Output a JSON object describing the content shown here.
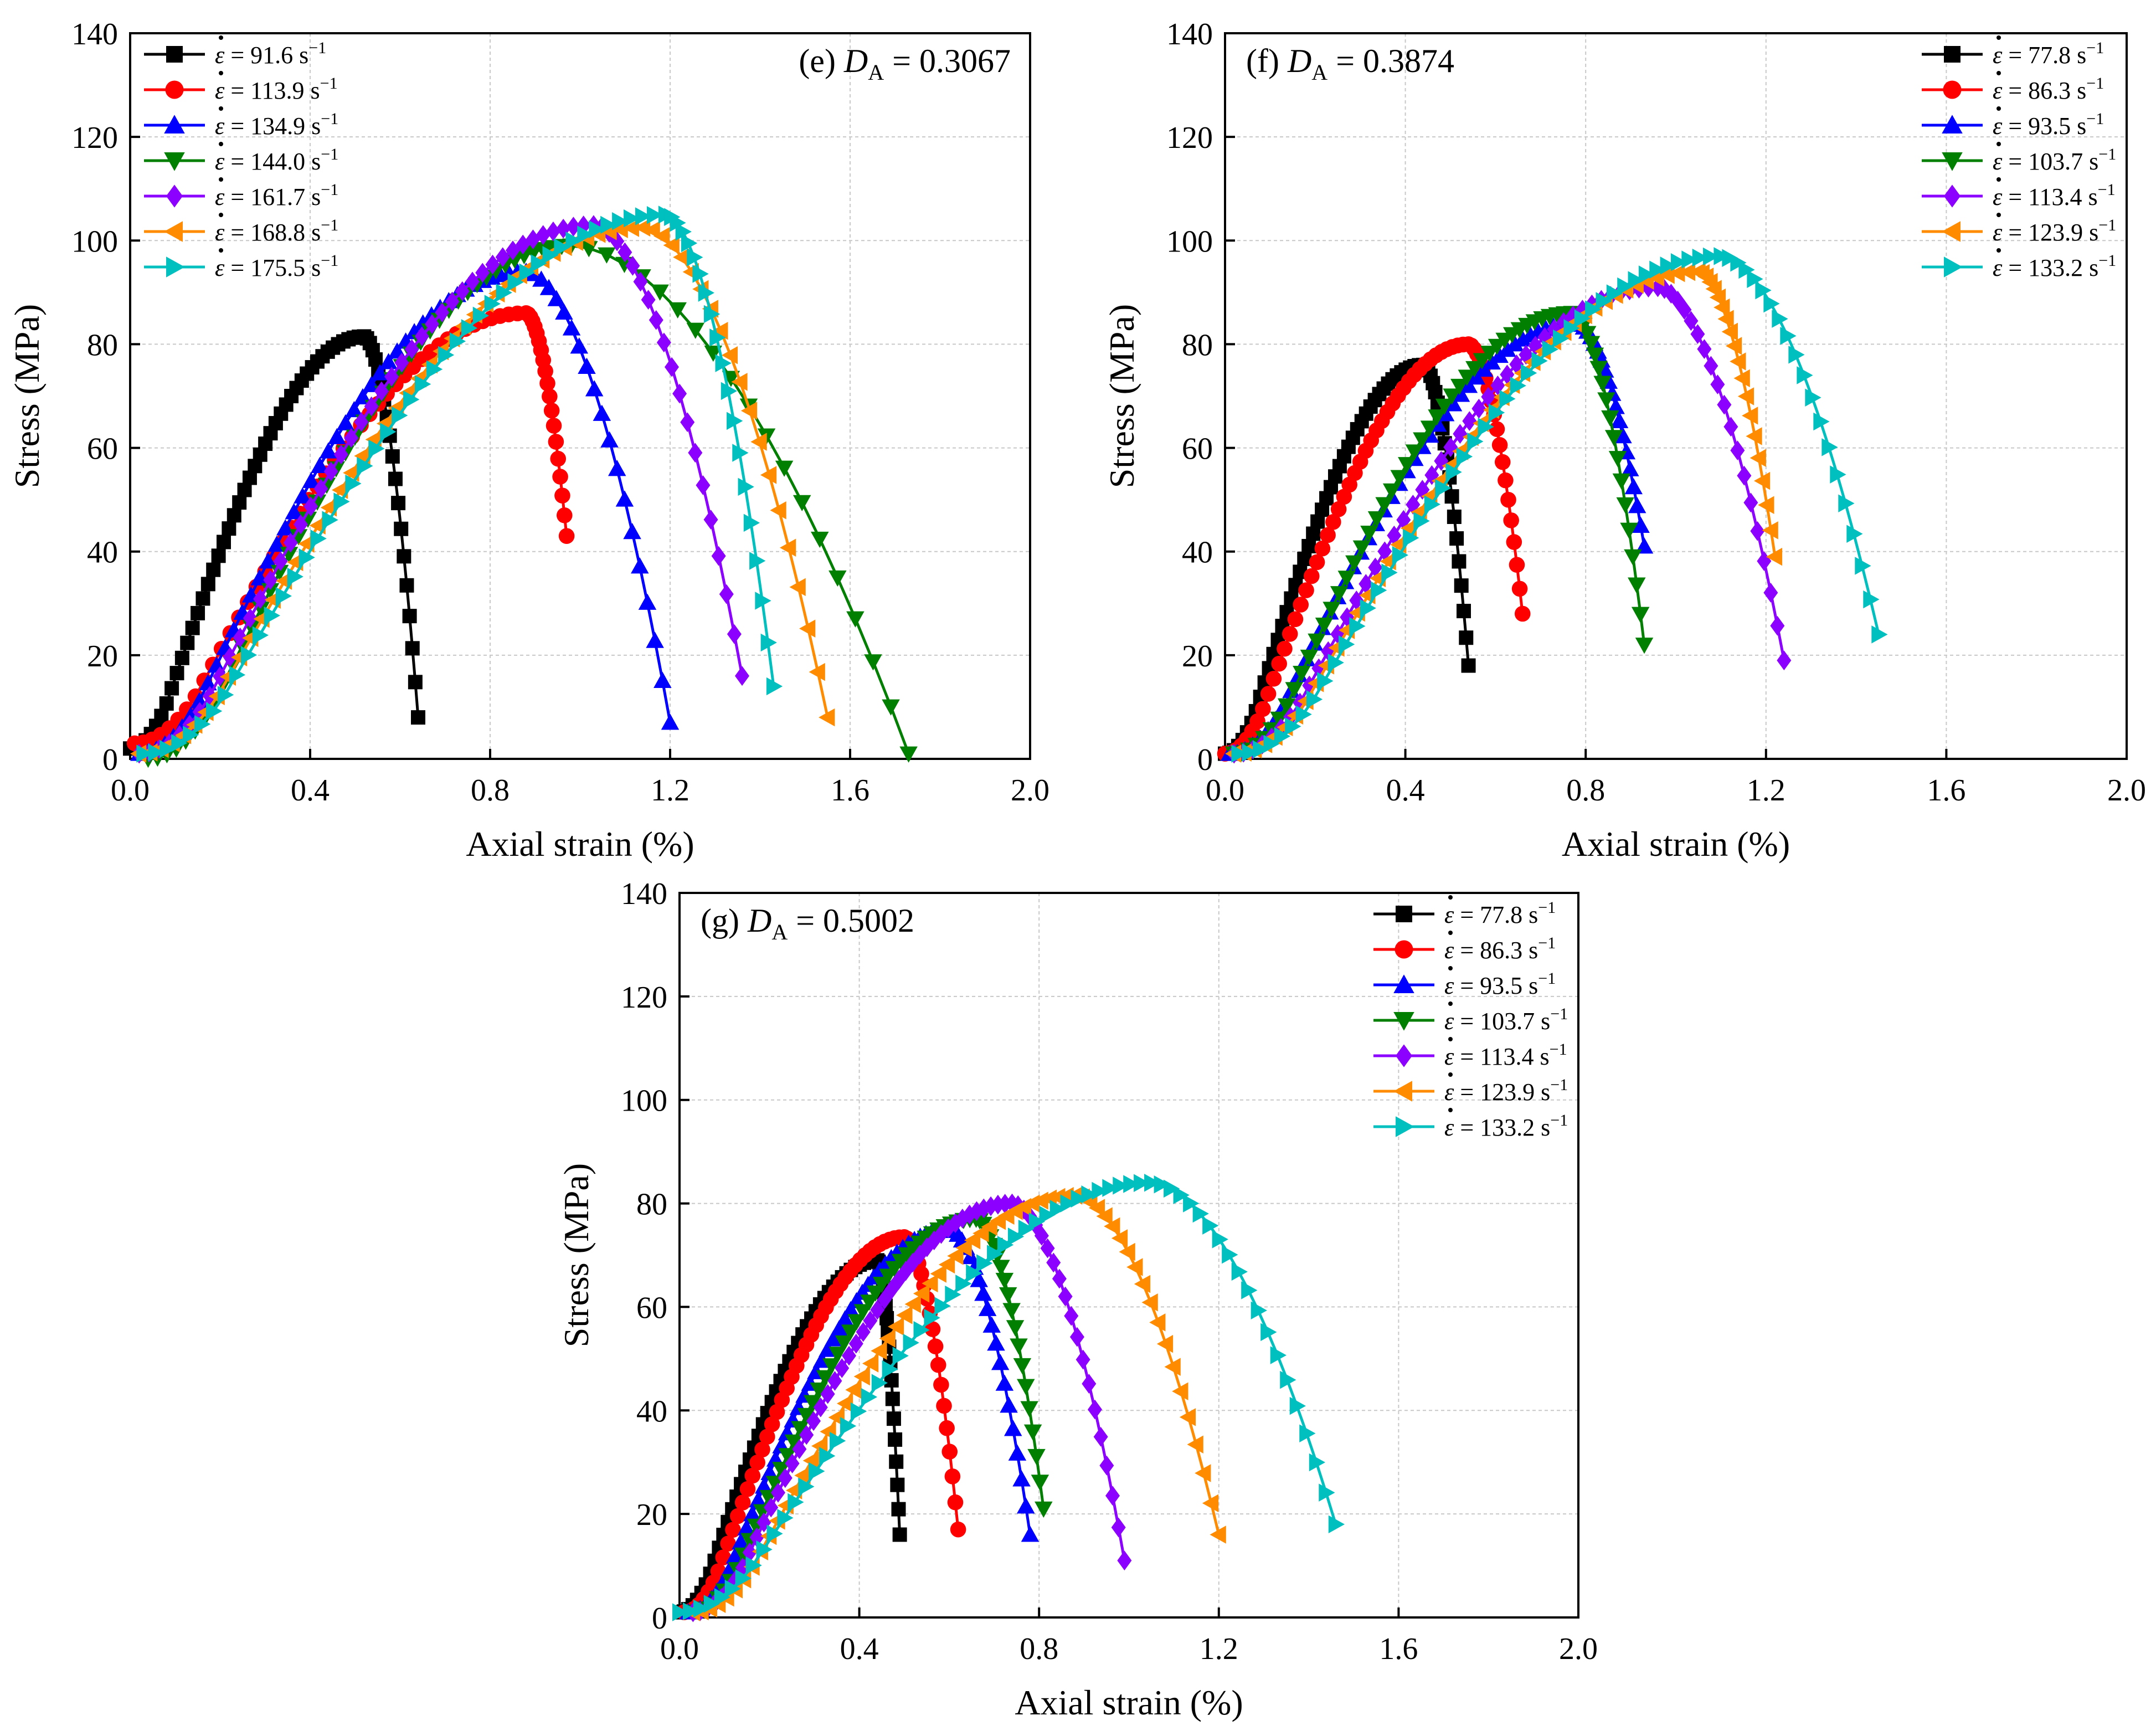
{
  "chart_data": [
    {
      "type": "line",
      "panel": "(e)",
      "title_prefix": "(e) ",
      "title_symbol": "D",
      "title_sub": "A",
      "title_value": " = 0.3067",
      "xlabel": "Axial strain (%)",
      "ylabel": "Stress (MPa)",
      "xlim": [
        0,
        2.0
      ],
      "ylim": [
        0,
        140
      ],
      "xticks": [
        "0.0",
        "0.4",
        "0.8",
        "1.2",
        "1.6",
        "2.0"
      ],
      "yticks": [
        "0",
        "20",
        "40",
        "60",
        "80",
        "100",
        "120",
        "140"
      ],
      "grid": true,
      "legend_position": "top-left",
      "series": [
        {
          "name": "91.6",
          "color": "#000000",
          "marker": "square",
          "peak_strain": 0.52,
          "peak_stress": 81.5,
          "end_strain": 0.64,
          "end_stress": 8,
          "start_strain": 0.0,
          "start_stress": 2
        },
        {
          "name": "113.9",
          "color": "#ff0000",
          "marker": "circle",
          "peak_strain": 0.88,
          "peak_stress": 86,
          "end_strain": 0.97,
          "end_stress": 43,
          "start_strain": 0.01,
          "start_stress": 3
        },
        {
          "name": "134.9",
          "color": "#0000ff",
          "marker": "triangle-up",
          "peak_strain": 0.88,
          "peak_stress": 94,
          "end_strain": 1.2,
          "end_stress": 7,
          "start_strain": 0.02,
          "start_stress": 1
        },
        {
          "name": "144.0",
          "color": "#007f00",
          "marker": "triangle-down",
          "peak_strain": 0.98,
          "peak_stress": 99,
          "end_strain": 1.73,
          "end_stress": 1,
          "start_strain": 0.04,
          "start_stress": 0
        },
        {
          "name": "161.7",
          "color": "#8b00ff",
          "marker": "diamond",
          "peak_strain": 1.03,
          "peak_stress": 103,
          "end_strain": 1.36,
          "end_stress": 16,
          "start_strain": 0.02,
          "start_stress": 1
        },
        {
          "name": "168.8",
          "color": "#ff8c00",
          "marker": "triangle-left",
          "peak_strain": 1.14,
          "peak_stress": 102.5,
          "end_strain": 1.55,
          "end_stress": 8,
          "start_strain": 0.02,
          "start_stress": 1
        },
        {
          "name": "175.5",
          "color": "#00bfbf",
          "marker": "triangle-right",
          "peak_strain": 1.19,
          "peak_stress": 105,
          "end_strain": 1.43,
          "end_stress": 14,
          "start_strain": 0.03,
          "start_stress": 1
        }
      ]
    },
    {
      "type": "line",
      "panel": "(f)",
      "title_prefix": "(f) ",
      "title_symbol": "D",
      "title_sub": "A",
      "title_value": " = 0.3874",
      "xlabel": "Axial strain (%)",
      "ylabel": "Stress (MPa)",
      "xlim": [
        0,
        2.0
      ],
      "ylim": [
        0,
        140
      ],
      "xticks": [
        "0.0",
        "0.4",
        "0.8",
        "1.2",
        "1.6",
        "2.0"
      ],
      "yticks": [
        "0",
        "20",
        "40",
        "60",
        "80",
        "100",
        "120",
        "140"
      ],
      "grid": true,
      "legend_position": "top-right",
      "series": [
        {
          "name": "77.8",
          "color": "#000000",
          "marker": "square",
          "peak_strain": 0.44,
          "peak_stress": 76,
          "end_strain": 0.54,
          "end_stress": 18,
          "start_strain": 0.0,
          "start_stress": 1
        },
        {
          "name": "86.3",
          "color": "#ff0000",
          "marker": "circle",
          "peak_strain": 0.54,
          "peak_stress": 80,
          "end_strain": 0.66,
          "end_stress": 28,
          "start_strain": 0.0,
          "start_stress": 1
        },
        {
          "name": "93.5",
          "color": "#0000ff",
          "marker": "triangle-up",
          "peak_strain": 0.78,
          "peak_stress": 84,
          "end_strain": 0.93,
          "end_stress": 41,
          "start_strain": 0.01,
          "start_stress": 1
        },
        {
          "name": "103.7",
          "color": "#007f00",
          "marker": "triangle-down",
          "peak_strain": 0.77,
          "peak_stress": 86,
          "end_strain": 0.93,
          "end_stress": 22,
          "start_strain": 0.02,
          "start_stress": 1
        },
        {
          "name": "113.4",
          "color": "#8b00ff",
          "marker": "diamond",
          "peak_strain": 0.96,
          "peak_stress": 91,
          "end_strain": 1.24,
          "end_stress": 19,
          "start_strain": 0.02,
          "start_stress": 1
        },
        {
          "name": "123.9",
          "color": "#ff8c00",
          "marker": "triangle-left",
          "peak_strain": 1.05,
          "peak_stress": 94,
          "end_strain": 1.22,
          "end_stress": 39,
          "start_strain": 0.02,
          "start_stress": 1
        },
        {
          "name": "133.2",
          "color": "#00bfbf",
          "marker": "triangle-right",
          "peak_strain": 1.1,
          "peak_stress": 97,
          "end_strain": 1.45,
          "end_stress": 24,
          "start_strain": 0.03,
          "start_stress": 1
        }
      ]
    },
    {
      "type": "line",
      "panel": "(g)",
      "title_prefix": "(g) ",
      "title_symbol": "D",
      "title_sub": "A",
      "title_value": " = 0.5002",
      "xlabel": "Axial strain (%)",
      "ylabel": "Stress (MPa)",
      "xlim": [
        0,
        2.0
      ],
      "ylim": [
        0,
        140
      ],
      "xticks": [
        "0.0",
        "0.4",
        "0.8",
        "1.2",
        "1.6",
        "2.0"
      ],
      "yticks": [
        "0",
        "20",
        "40",
        "60",
        "80",
        "100",
        "120",
        "140"
      ],
      "grid": true,
      "legend_position": "top-right",
      "series": [
        {
          "name": "77.8",
          "color": "#000000",
          "marker": "square",
          "peak_strain": 0.44,
          "peak_stress": 69,
          "end_strain": 0.49,
          "end_stress": 16,
          "start_strain": 0.0,
          "start_stress": 1
        },
        {
          "name": "86.3",
          "color": "#ff0000",
          "marker": "circle",
          "peak_strain": 0.5,
          "peak_stress": 73.5,
          "end_strain": 0.62,
          "end_stress": 17,
          "start_strain": 0.01,
          "start_stress": 1
        },
        {
          "name": "93.5",
          "color": "#0000ff",
          "marker": "triangle-up",
          "peak_strain": 0.6,
          "peak_stress": 75,
          "end_strain": 0.78,
          "end_stress": 16,
          "start_strain": 0.02,
          "start_stress": 1
        },
        {
          "name": "103.7",
          "color": "#007f00",
          "marker": "triangle-down",
          "peak_strain": 0.66,
          "peak_stress": 77,
          "end_strain": 0.81,
          "end_stress": 21,
          "start_strain": 0.03,
          "start_stress": 1
        },
        {
          "name": "113.4",
          "color": "#8b00ff",
          "marker": "diamond",
          "peak_strain": 0.74,
          "peak_stress": 80,
          "end_strain": 0.99,
          "end_stress": 11,
          "start_strain": 0.03,
          "start_stress": 1
        },
        {
          "name": "123.9",
          "color": "#ff8c00",
          "marker": "triangle-left",
          "peak_strain": 0.88,
          "peak_stress": 81.5,
          "end_strain": 1.2,
          "end_stress": 16,
          "start_strain": 0.03,
          "start_stress": 1
        },
        {
          "name": "133.2",
          "color": "#00bfbf",
          "marker": "triangle-right",
          "peak_strain": 1.05,
          "peak_stress": 84,
          "end_strain": 1.46,
          "end_stress": 18,
          "start_strain": 0.0,
          "start_stress": 1
        }
      ]
    }
  ],
  "legend_symbol": "ε",
  "legend_eq": " = ",
  "legend_unit": " s",
  "legend_sup": "−1"
}
